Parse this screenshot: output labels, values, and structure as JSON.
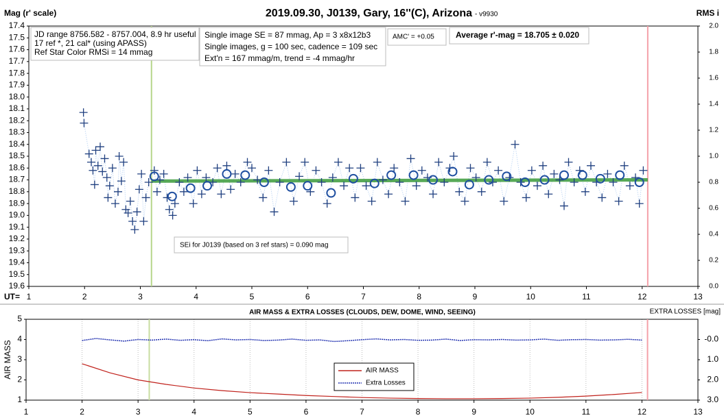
{
  "chart_data": [
    {
      "type": "scatter",
      "title": "2019.09.30, J0139, Gary, 16''(C), Arizona",
      "subtitle": " - v9930",
      "y_label": "Mag (r' scale)",
      "y2_label": "RMS i",
      "x_label": "UT=",
      "xlim": [
        1,
        13
      ],
      "xticks": [
        1,
        2,
        3,
        4,
        5,
        6,
        7,
        8,
        9,
        10,
        11,
        12,
        13
      ],
      "ylim": [
        19.6,
        17.4
      ],
      "yticks": [
        17.4,
        17.5,
        17.6,
        17.7,
        17.8,
        17.9,
        {
          "value": 18,
          "label": "18.0"
        },
        18.1,
        18.2,
        18.3,
        18.4,
        18.5,
        18.6,
        18.7,
        18.8,
        18.9,
        {
          "value": 19,
          "label": "19.0"
        },
        19.1,
        19.2,
        19.3,
        19.4,
        19.5,
        19.6
      ],
      "y2lim": [
        0,
        2
      ],
      "y2ticks": [
        {
          "value": 0,
          "label": "0.0"
        },
        0.2,
        0.4,
        0.6,
        0.8,
        {
          "value": 1,
          "label": "1.0"
        },
        1.2,
        1.4,
        1.6,
        1.8,
        {
          "value": 2,
          "label": "2.0"
        }
      ],
      "info": [
        "JD range 8756.582 - 8757.004, 8.9 hr useful",
        "17 ref *, 21 cal* (using APASS)",
        "Ref Star Color RMSi = 14 mmag"
      ],
      "info2": [
        "Single image SE = 87 mmag, Ap = 3 x8x12b3",
        "Single images, g = 100 sec, cadence = 109 sec",
        "Ext'n = 167 mmag/m, trend = -4 mmag/hr"
      ],
      "amc": "AMC' = +0.05",
      "average": "Average r'-mag =  18.705 ± 0.020",
      "annotation": "SEi for J0139 (based on 3 ref stars) = 0.090 mag",
      "vlines": [
        {
          "x": 3.2,
          "color": "#b5d68a"
        },
        {
          "x": 12.1,
          "color": "#f4a0a8"
        }
      ],
      "trend": {
        "x": [
          3.2,
          12.1
        ],
        "values": [
          18.71,
          18.7
        ],
        "color": "#3a9a3a"
      },
      "series": [
        {
          "marker": "cross",
          "color": "#1f3f7f",
          "line_color": "#a8c8f0",
          "x": [
            1.98,
            1.99,
            2.08,
            2.12,
            2.15,
            2.18,
            2.2,
            2.24,
            2.28,
            2.32,
            2.36,
            2.4,
            2.42,
            2.45,
            2.5,
            2.55,
            2.6,
            2.62,
            2.66,
            2.7,
            2.74,
            2.78,
            2.82,
            2.86,
            2.9,
            2.94,
            2.98,
            3.02,
            3.06,
            3.1,
            3.15,
            3.25,
            3.3,
            3.35,
            3.42,
            3.48,
            3.52,
            3.58,
            3.62,
            3.7,
            3.78,
            3.85,
            3.95,
            4.02,
            4.1,
            4.18,
            4.3,
            4.38,
            4.45,
            4.55,
            4.62,
            4.7,
            4.8,
            4.92,
            5.0,
            5.1,
            5.2,
            5.3,
            5.4,
            5.5,
            5.62,
            5.75,
            5.85,
            5.95,
            6.05,
            6.15,
            6.25,
            6.35,
            6.45,
            6.55,
            6.65,
            6.75,
            6.85,
            6.95,
            7.05,
            7.15,
            7.25,
            7.35,
            7.45,
            7.55,
            7.65,
            7.75,
            7.85,
            7.95,
            8.05,
            8.15,
            8.25,
            8.35,
            8.45,
            8.55,
            8.62,
            8.72,
            8.82,
            8.92,
            9.02,
            9.12,
            9.22,
            9.32,
            9.42,
            9.52,
            9.62,
            9.72,
            9.82,
            9.92,
            10.02,
            10.12,
            10.22,
            10.32,
            10.42,
            10.52,
            10.6,
            10.68,
            10.78,
            10.88,
            10.98,
            11.08,
            11.18,
            11.28,
            11.38,
            11.48,
            11.58,
            11.68,
            11.78,
            11.88,
            11.95,
            12.02
          ],
          "values": [
            18.13,
            18.22,
            18.48,
            18.55,
            18.62,
            18.74,
            18.45,
            18.58,
            18.42,
            18.63,
            18.52,
            18.68,
            18.85,
            18.75,
            18.6,
            18.9,
            18.8,
            18.5,
            18.71,
            18.55,
            18.95,
            18.98,
            18.88,
            19.05,
            19.12,
            18.97,
            18.78,
            18.65,
            19.05,
            18.85,
            18.72,
            18.62,
            18.8,
            18.7,
            18.65,
            18.85,
            18.95,
            19.0,
            18.9,
            18.72,
            18.8,
            18.68,
            18.9,
            18.62,
            18.82,
            18.68,
            18.72,
            18.6,
            18.82,
            18.58,
            18.78,
            18.65,
            18.72,
            18.55,
            18.6,
            18.7,
            18.85,
            18.62,
            18.97,
            18.72,
            18.55,
            18.88,
            18.67,
            18.55,
            18.8,
            18.62,
            18.72,
            18.9,
            18.68,
            18.55,
            18.75,
            18.6,
            18.85,
            18.6,
            18.75,
            18.88,
            18.55,
            18.7,
            18.82,
            18.6,
            18.72,
            18.88,
            18.52,
            18.75,
            18.62,
            18.68,
            18.82,
            18.55,
            18.72,
            18.6,
            18.5,
            18.8,
            18.88,
            18.6,
            18.68,
            18.8,
            18.55,
            18.72,
            18.62,
            18.88,
            18.68,
            18.4,
            18.72,
            18.85,
            18.62,
            18.75,
            18.58,
            18.82,
            18.65,
            18.7,
            18.92,
            18.55,
            18.72,
            18.62,
            18.8,
            18.58,
            18.72,
            18.85,
            18.65,
            18.72,
            18.88,
            18.58,
            18.75,
            18.68,
            18.9,
            18.62
          ]
        },
        {
          "marker": "circle",
          "color": "#1f4fa0",
          "x": [
            3.25,
            3.57,
            3.9,
            4.2,
            4.55,
            4.88,
            5.22,
            5.7,
            6.0,
            6.42,
            6.82,
            7.2,
            7.5,
            7.9,
            8.25,
            8.6,
            8.9,
            9.25,
            9.57,
            9.9,
            10.25,
            10.6,
            10.93,
            11.25,
            11.6,
            11.95
          ],
          "values": [
            18.67,
            18.84,
            18.77,
            18.75,
            18.65,
            18.66,
            18.72,
            18.76,
            18.75,
            18.81,
            18.69,
            18.73,
            18.66,
            18.66,
            18.7,
            18.63,
            18.74,
            18.7,
            18.67,
            18.72,
            18.7,
            18.66,
            18.66,
            18.69,
            18.66,
            18.72
          ]
        }
      ]
    },
    {
      "type": "line",
      "title": "AIR MASS & EXTRA LOSSES (CLOUDS, DEW, DOME, WIND, SEEING)",
      "y_label": "AIR MASS",
      "y2_label": "EXTRA LOSSES [mag]",
      "xlim": [
        1,
        13
      ],
      "xticks": [
        1,
        2,
        3,
        4,
        5,
        6,
        7,
        8,
        9,
        10,
        11,
        12,
        13
      ],
      "ylim": [
        1,
        5
      ],
      "yticks": [
        1,
        2,
        3,
        4,
        5
      ],
      "y2lim": [
        3,
        -1
      ],
      "y2ticks": [
        {
          "value": 0,
          "label": "-0.0"
        },
        {
          "value": 1,
          "label": "1.0"
        },
        {
          "value": 2,
          "label": "2.0"
        },
        {
          "value": 3,
          "label": "3.0"
        }
      ],
      "grid": true,
      "vlines": [
        {
          "x": 3.2,
          "color": "#c8dca0"
        },
        {
          "x": 12.1,
          "color": "#f4a0a8"
        }
      ],
      "series": [
        {
          "name": "AIR MASS",
          "color": "#c0201a",
          "x": [
            2,
            2.5,
            3,
            3.5,
            4,
            4.5,
            5,
            5.5,
            6,
            6.5,
            7,
            7.5,
            8,
            8.5,
            9,
            9.5,
            10,
            10.5,
            11,
            11.5,
            12
          ],
          "values": [
            2.8,
            2.35,
            2.0,
            1.78,
            1.6,
            1.47,
            1.37,
            1.3,
            1.23,
            1.18,
            1.13,
            1.1,
            1.08,
            1.07,
            1.07,
            1.08,
            1.1,
            1.14,
            1.2,
            1.28,
            1.38
          ]
        },
        {
          "name": "Extra Losses",
          "color": "#2030b0",
          "axis": "y2",
          "dashed": true,
          "x": [
            2,
            2.25,
            2.5,
            2.75,
            3,
            3.25,
            3.5,
            3.75,
            4,
            4.25,
            4.5,
            4.75,
            5,
            5.25,
            5.5,
            5.75,
            6,
            6.25,
            6.5,
            6.75,
            7,
            7.25,
            7.5,
            7.75,
            8,
            8.25,
            8.5,
            8.75,
            9,
            9.25,
            9.5,
            9.75,
            10,
            10.25,
            10.5,
            10.75,
            11,
            11.25,
            11.5,
            11.75,
            12
          ],
          "values": [
            0.05,
            -0.05,
            0.02,
            0.08,
            0.0,
            0.03,
            -0.02,
            0.04,
            0.01,
            0.06,
            -0.03,
            0.02,
            0.0,
            0.05,
            0.03,
            -0.02,
            0.04,
            0.02,
            0.1,
            0.06,
            0.01,
            -0.03,
            0.02,
            0.0,
            0.04,
            0.03,
            -0.02,
            0.05,
            0.01,
            0.02,
            0.0,
            0.03,
            0.02,
            -0.02,
            0.04,
            0.01,
            0.0,
            0.03,
            0.02,
            -0.01,
            0.03
          ]
        }
      ]
    }
  ]
}
